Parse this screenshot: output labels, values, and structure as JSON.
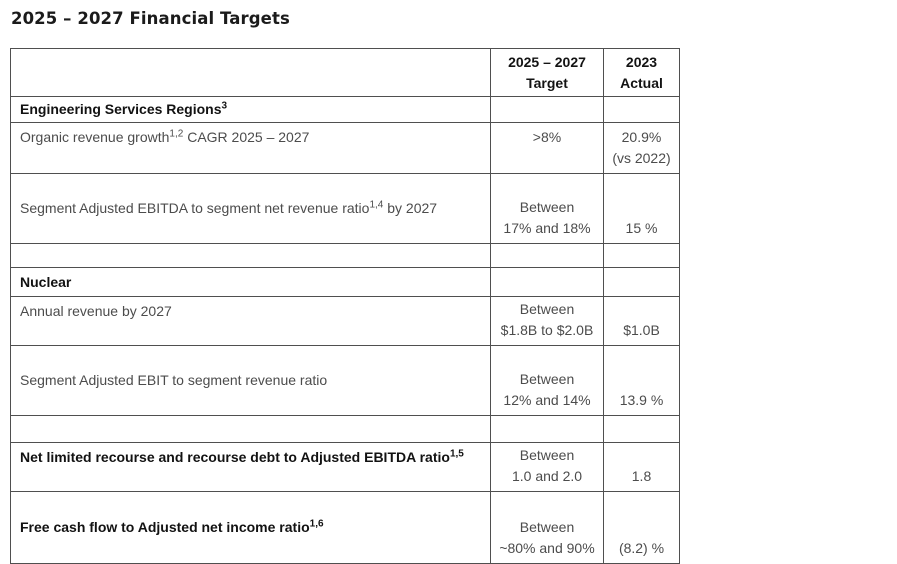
{
  "title": "2025 – 2027 Financial Targets",
  "table": {
    "header": {
      "label": "",
      "target_line1": "2025 – 2027",
      "target_line2": "Target",
      "actual_line1": "2023",
      "actual_line2": "Actual"
    },
    "rows": [
      {
        "label": "Engineering Services Regions",
        "sup": "3",
        "label_after": "",
        "target_line1": "",
        "target_line2": "",
        "actual_line1": "",
        "actual_line2": ""
      },
      {
        "label": "Organic revenue growth",
        "sup": "1,2",
        "label_after": " CAGR 2025 – 2027",
        "target_line1": ">8%",
        "target_line2": "",
        "actual_line1": "20.9%",
        "actual_line2": "(vs 2022)"
      },
      {
        "label": "Segment Adjusted EBITDA to segment net revenue ratio",
        "sup": "1,4",
        "label_after": " by 2027",
        "target_line1": "Between",
        "target_line2": "17% and 18%",
        "actual_line1": "15 %",
        "actual_line2": ""
      },
      {
        "label": "",
        "sup": "",
        "label_after": "",
        "target_line1": "",
        "target_line2": "",
        "actual_line1": "",
        "actual_line2": ""
      },
      {
        "label": "Nuclear",
        "sup": "",
        "label_after": "",
        "target_line1": "",
        "target_line2": "",
        "actual_line1": "",
        "actual_line2": ""
      },
      {
        "label": "Annual revenue by 2027",
        "sup": "",
        "label_after": "",
        "target_line1": "Between",
        "target_line2": "$1.8B to $2.0B",
        "actual_line1": "$1.0B",
        "actual_line2": ""
      },
      {
        "label": "Segment Adjusted EBIT to segment revenue ratio",
        "sup": "",
        "label_after": "",
        "target_line1": "Between",
        "target_line2": "12% and 14%",
        "actual_line1": "13.9 %",
        "actual_line2": ""
      },
      {
        "label": "",
        "sup": "",
        "label_after": "",
        "target_line1": "",
        "target_line2": "",
        "actual_line1": "",
        "actual_line2": ""
      },
      {
        "label": "Net limited recourse and recourse debt to Adjusted EBITDA ratio",
        "sup": "1,5",
        "label_after": "",
        "target_line1": "Between",
        "target_line2": "1.0 and 2.0",
        "actual_line1": "1.8",
        "actual_line2": ""
      },
      {
        "label": "Free cash flow to Adjusted net income ratio",
        "sup": "1,6",
        "label_after": "",
        "target_line1": "Between",
        "target_line2": "~80% and 90%",
        "actual_line1": "(8.2) %",
        "actual_line2": ""
      }
    ]
  }
}
